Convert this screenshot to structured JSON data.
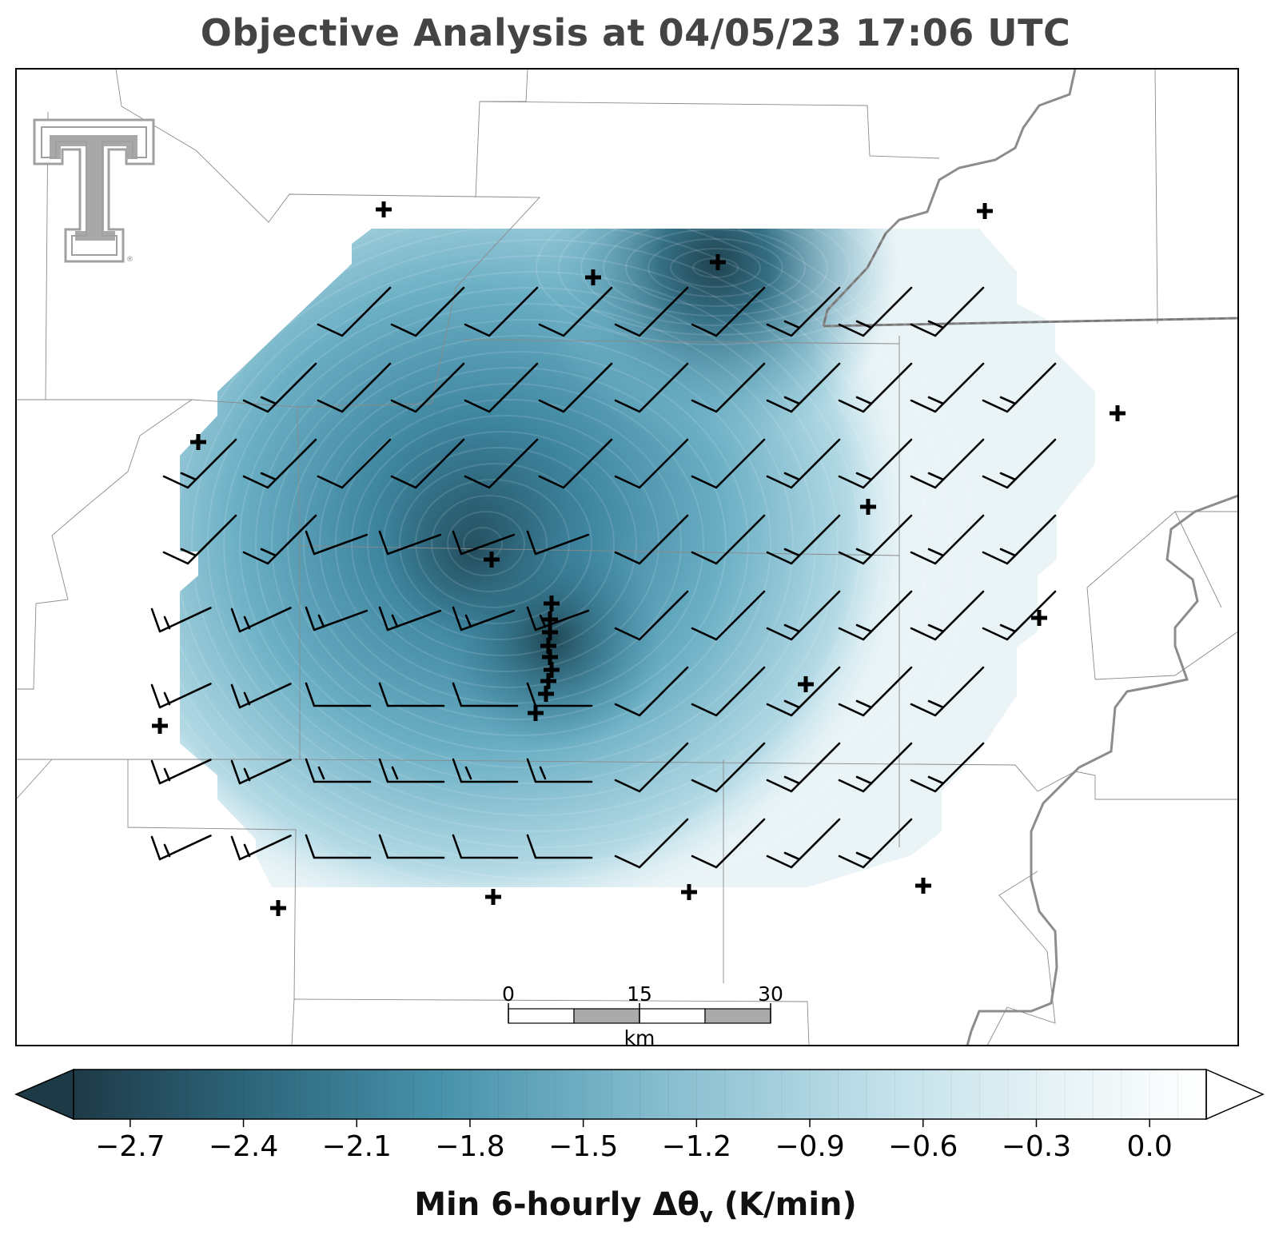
{
  "title": "Objective Analysis at 04/05/23 17:06 UTC",
  "colorbar": {
    "label_main": "Min 6-hourly Δθ",
    "label_sub": "v",
    "label_units": "(K/min)",
    "min": -2.85,
    "max": 0.15,
    "ticks": [
      -2.7,
      -2.4,
      -2.1,
      -1.8,
      -1.5,
      -1.2,
      -0.9,
      -0.6,
      -0.3,
      0.0
    ],
    "tick_labels": [
      "−2.7",
      "−2.4",
      "−2.1",
      "−1.8",
      "−1.5",
      "−1.2",
      "−0.9",
      "−0.6",
      "−0.3",
      "0.0"
    ],
    "extend": "both",
    "colors": [
      "#1e3a47",
      "#2f6e86",
      "#4a96ae",
      "#8fc4d4",
      "#d5eaf0",
      "#ffffff"
    ]
  },
  "scalebar": {
    "labels": [
      "0",
      "15",
      "30"
    ],
    "unit": "km"
  },
  "logo": {
    "icon": "texas-tech-double-t-logo",
    "mark": "®"
  },
  "map": {
    "field_min_1": -2.55,
    "field_min_2": -2.7,
    "field_min_3": -2.4,
    "barb_color": "#000000",
    "station_marker": "plus",
    "boundary_color": "#888888"
  }
}
